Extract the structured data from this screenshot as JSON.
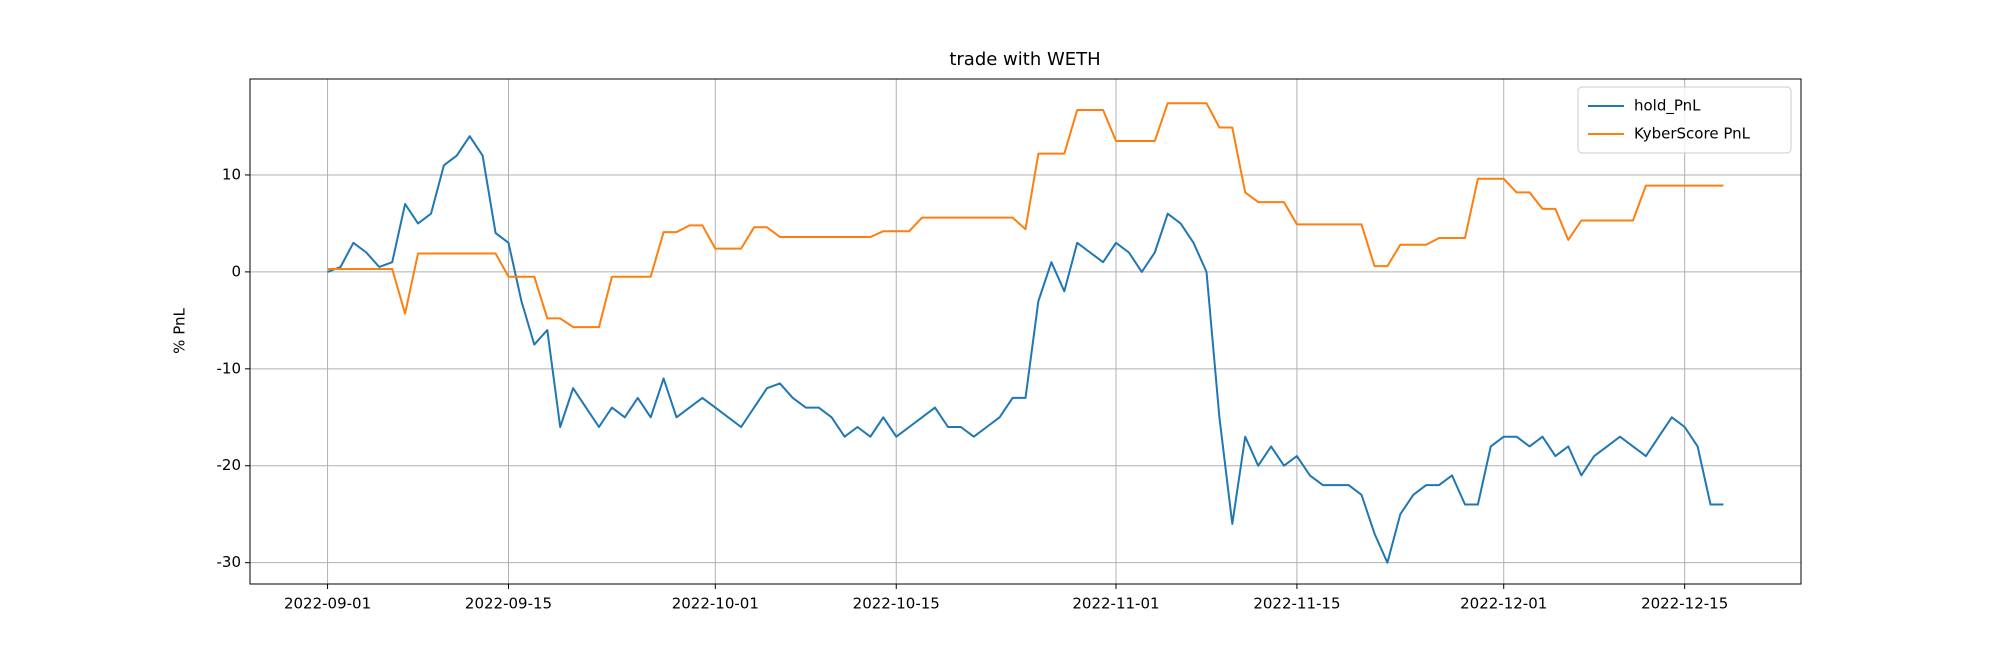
{
  "chart_data": {
    "type": "line",
    "title": "trade with WETH",
    "ylabel": "% PnL",
    "x": [
      "2022-09-01",
      "2022-09-02",
      "2022-09-03",
      "2022-09-04",
      "2022-09-05",
      "2022-09-06",
      "2022-09-07",
      "2022-09-08",
      "2022-09-09",
      "2022-09-10",
      "2022-09-11",
      "2022-09-12",
      "2022-09-13",
      "2022-09-14",
      "2022-09-15",
      "2022-09-16",
      "2022-09-17",
      "2022-09-18",
      "2022-09-19",
      "2022-09-20",
      "2022-09-21",
      "2022-09-22",
      "2022-09-23",
      "2022-09-24",
      "2022-09-25",
      "2022-09-26",
      "2022-09-27",
      "2022-09-28",
      "2022-09-29",
      "2022-09-30",
      "2022-10-01",
      "2022-10-02",
      "2022-10-03",
      "2022-10-04",
      "2022-10-05",
      "2022-10-06",
      "2022-10-07",
      "2022-10-08",
      "2022-10-09",
      "2022-10-10",
      "2022-10-11",
      "2022-10-12",
      "2022-10-13",
      "2022-10-14",
      "2022-10-15",
      "2022-10-16",
      "2022-10-17",
      "2022-10-18",
      "2022-10-19",
      "2022-10-20",
      "2022-10-21",
      "2022-10-22",
      "2022-10-23",
      "2022-10-24",
      "2022-10-25",
      "2022-10-26",
      "2022-10-27",
      "2022-10-28",
      "2022-10-29",
      "2022-10-30",
      "2022-10-31",
      "2022-11-01",
      "2022-11-02",
      "2022-11-03",
      "2022-11-04",
      "2022-11-05",
      "2022-11-06",
      "2022-11-07",
      "2022-11-08",
      "2022-11-09",
      "2022-11-10",
      "2022-11-11",
      "2022-11-12",
      "2022-11-13",
      "2022-11-14",
      "2022-11-15",
      "2022-11-16",
      "2022-11-17",
      "2022-11-18",
      "2022-11-19",
      "2022-11-20",
      "2022-11-21",
      "2022-11-22",
      "2022-11-23",
      "2022-11-24",
      "2022-11-25",
      "2022-11-26",
      "2022-11-27",
      "2022-11-28",
      "2022-11-29",
      "2022-11-30",
      "2022-12-01",
      "2022-12-02",
      "2022-12-03",
      "2022-12-04",
      "2022-12-05",
      "2022-12-06",
      "2022-12-07",
      "2022-12-08",
      "2022-12-09",
      "2022-12-10",
      "2022-12-11",
      "2022-12-12",
      "2022-12-13",
      "2022-12-14",
      "2022-12-15",
      "2022-12-16",
      "2022-12-17",
      "2022-12-18"
    ],
    "series": [
      {
        "name": "hold_PnL",
        "color": "#1f77b4",
        "values": [
          0,
          0.5,
          3,
          2,
          0.5,
          1,
          7,
          5,
          6,
          11,
          12,
          14,
          12,
          4,
          3,
          -3,
          -7.5,
          -6,
          -16,
          -12,
          -14,
          -16,
          -14,
          -15,
          -13,
          -15,
          -11,
          -15,
          -14,
          -13,
          -14,
          -15,
          -16,
          -14,
          -12,
          -11.5,
          -13,
          -14,
          -14,
          -15,
          -17,
          -16,
          -17,
          -15,
          -17,
          -16,
          -15,
          -14,
          -16,
          -16,
          -17,
          -16,
          -15,
          -13,
          -13,
          -3,
          1,
          -2,
          3,
          2,
          1,
          3,
          2,
          0,
          2,
          6,
          5,
          3,
          0,
          -15,
          -26,
          -17,
          -20,
          -18,
          -20,
          -19,
          -21,
          -22,
          -22,
          -22,
          -23,
          -27,
          -30,
          -25,
          -23,
          -22,
          -22,
          -21,
          -24,
          -24,
          -18,
          -17,
          -17,
          -18,
          -17,
          -19,
          -18,
          -21,
          -19,
          -18,
          -17,
          -18,
          -19,
          -17,
          -15,
          -16,
          -18,
          -24,
          -24
        ]
      },
      {
        "name": "KyberScore PnL",
        "color": "#ff7f0e",
        "values": [
          0.3,
          0.3,
          0.3,
          0.3,
          0.3,
          0.3,
          -4.3,
          1.9,
          1.9,
          1.9,
          1.9,
          1.9,
          1.9,
          1.9,
          -0.5,
          -0.5,
          -0.5,
          -4.8,
          -4.8,
          -5.7,
          -5.7,
          -5.7,
          -0.5,
          -0.5,
          -0.5,
          -0.5,
          4.1,
          4.1,
          4.8,
          4.8,
          2.4,
          2.4,
          2.4,
          4.6,
          4.6,
          3.6,
          3.6,
          3.6,
          3.6,
          3.6,
          3.6,
          3.6,
          3.6,
          4.2,
          4.2,
          4.2,
          5.6,
          5.6,
          5.6,
          5.6,
          5.6,
          5.6,
          5.6,
          5.6,
          4.4,
          12.2,
          12.2,
          12.2,
          16.7,
          16.7,
          16.7,
          13.5,
          13.5,
          13.5,
          13.5,
          17.4,
          17.4,
          17.4,
          17.4,
          14.9,
          14.9,
          8.2,
          7.2,
          7.2,
          7.2,
          4.9,
          4.9,
          4.9,
          4.9,
          4.9,
          4.9,
          0.6,
          0.6,
          2.8,
          2.8,
          2.8,
          3.5,
          3.5,
          3.5,
          9.6,
          9.6,
          9.6,
          8.2,
          8.2,
          6.5,
          6.5,
          3.3,
          5.3,
          5.3,
          5.3,
          5.3,
          5.3,
          8.9,
          8.9,
          8.9,
          8.9,
          8.9,
          8.9,
          8.9
        ]
      }
    ],
    "xlim": [
      "2022-08-26",
      "2022-12-24"
    ],
    "xticks": [
      "2022-09-01",
      "2022-09-15",
      "2022-10-01",
      "2022-10-15",
      "2022-11-01",
      "2022-11-15",
      "2022-12-01",
      "2022-12-15"
    ],
    "ylim": [
      -32.2,
      19.9
    ],
    "yticks": [
      -30,
      -20,
      -10,
      0,
      10
    ],
    "grid": true,
    "legend": "upper right"
  }
}
